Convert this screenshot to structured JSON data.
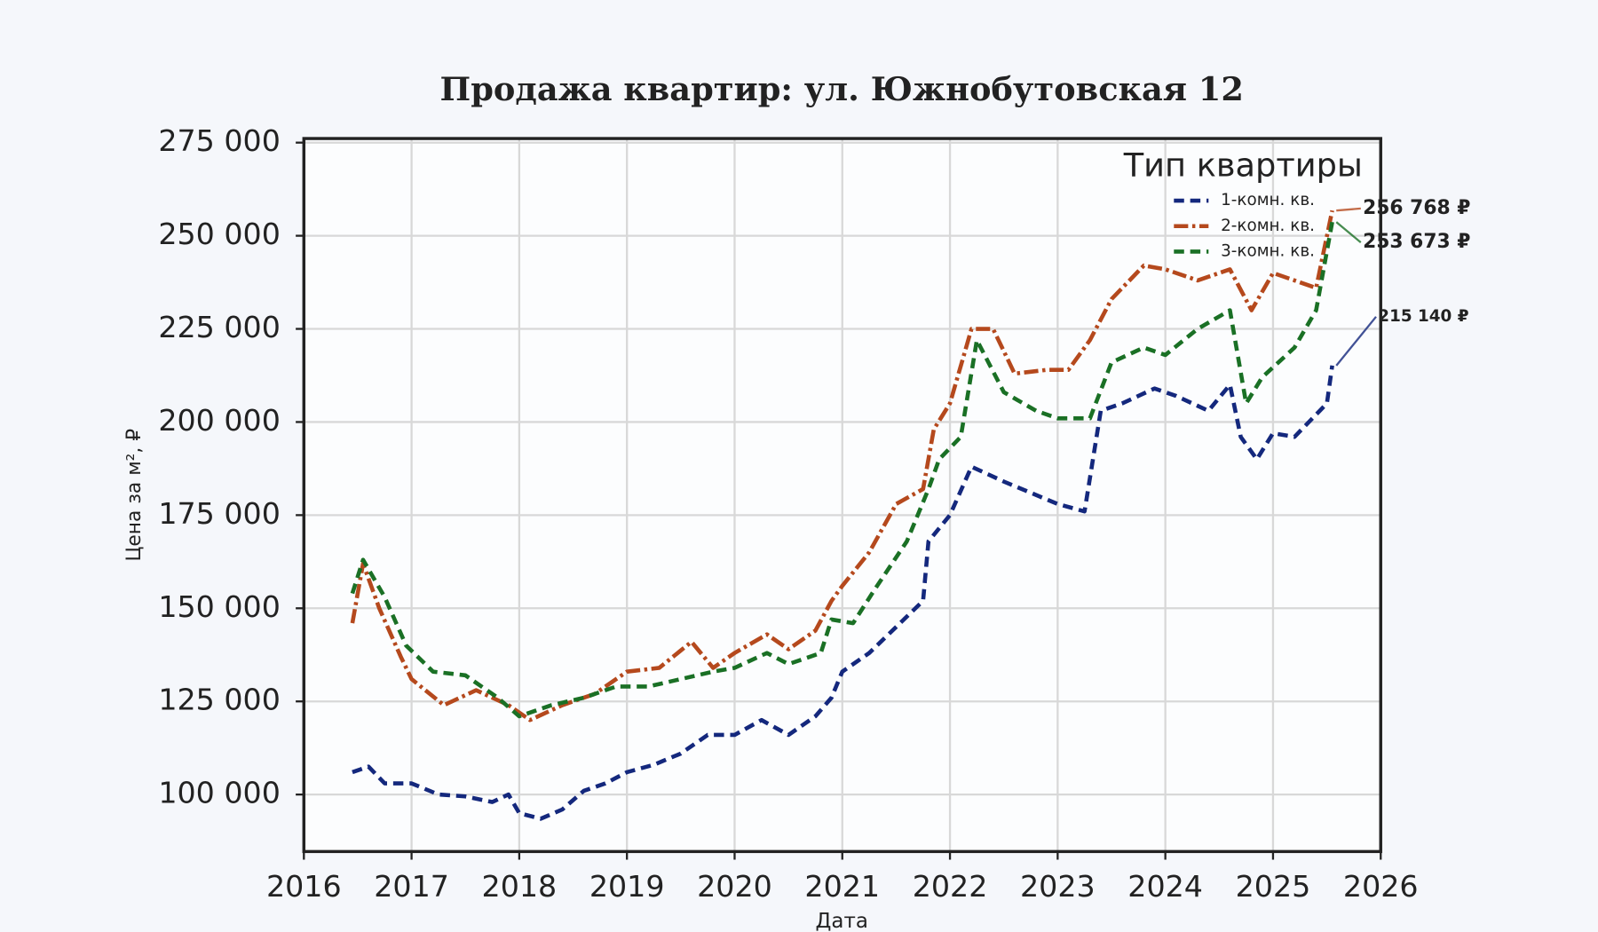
{
  "chart_data": {
    "type": "line",
    "title": "Продажа квартир: ул. Южнобутовская 12",
    "x_label": "Дата",
    "y_label": "Цена за м², ₽",
    "legend_title": "Тип квартиры",
    "legend": "upper right",
    "grid": true,
    "xlim": [
      2016,
      2026
    ],
    "xticks": [
      2016,
      2017,
      2018,
      2019,
      2020,
      2021,
      2022,
      2023,
      2024,
      2025,
      2026
    ],
    "ylim": [
      84700,
      276100
    ],
    "yticks": [
      {
        "value": 100000,
        "label": "100 000"
      },
      {
        "value": 125000,
        "label": "125 000"
      },
      {
        "value": 150000,
        "label": "150 000"
      },
      {
        "value": 175000,
        "label": "175 000"
      },
      {
        "value": 200000,
        "label": "200 000"
      },
      {
        "value": 225000,
        "label": "225 000"
      },
      {
        "value": 250000,
        "label": "250 000"
      },
      {
        "value": 275000,
        "label": "275 000"
      }
    ],
    "series": [
      {
        "name": "1-комн. кв.",
        "color": "#14287d",
        "dash": "10 6",
        "x": [
          2016.45,
          2016.6,
          2016.75,
          2017.0,
          2017.25,
          2017.5,
          2017.75,
          2017.9,
          2018.0,
          2018.2,
          2018.4,
          2018.6,
          2018.8,
          2019.0,
          2019.25,
          2019.5,
          2019.75,
          2020.0,
          2020.25,
          2020.5,
          2020.75,
          2020.9,
          2021.0,
          2021.25,
          2021.5,
          2021.75,
          2021.8,
          2022.0,
          2022.2,
          2022.5,
          2022.75,
          2023.0,
          2023.25,
          2023.4,
          2023.6,
          2023.9,
          2024.1,
          2024.4,
          2024.6,
          2024.7,
          2024.85,
          2025.0,
          2025.2,
          2025.4,
          2025.5,
          2025.55
        ],
        "values": [
          106000,
          107500,
          103000,
          103000,
          100000,
          99500,
          98000,
          100000,
          95000,
          93500,
          96000,
          101000,
          103000,
          106000,
          108000,
          111000,
          116000,
          116000,
          120000,
          116000,
          121000,
          126000,
          133000,
          138000,
          145000,
          152000,
          168000,
          175000,
          188000,
          184000,
          181000,
          178000,
          176000,
          203000,
          205000,
          209000,
          207000,
          203000,
          210000,
          196000,
          190000,
          197000,
          196000,
          202000,
          205000,
          215140
        ],
        "value_labels": [
          null,
          null,
          null,
          null,
          null,
          null,
          null,
          null,
          null,
          null,
          null,
          null,
          null,
          null,
          null,
          null,
          null,
          null,
          null,
          null,
          null,
          null,
          null,
          null,
          null,
          null,
          null,
          null,
          null,
          null,
          null,
          null,
          null,
          null,
          null,
          null,
          null,
          null,
          null,
          null,
          null,
          null,
          null,
          null,
          null,
          "215 140 ₽"
        ]
      },
      {
        "name": "2-комн. кв.",
        "color": "#b5491d",
        "dash": "14 4 3 4",
        "x": [
          2016.45,
          2016.55,
          2016.7,
          2016.9,
          2017.0,
          2017.3,
          2017.6,
          2017.9,
          2018.1,
          2018.4,
          2018.7,
          2019.0,
          2019.3,
          2019.6,
          2019.8,
          2020.0,
          2020.3,
          2020.5,
          2020.75,
          2020.9,
          2021.0,
          2021.25,
          2021.5,
          2021.75,
          2021.85,
          2022.0,
          2022.2,
          2022.4,
          2022.6,
          2022.9,
          2023.1,
          2023.3,
          2023.5,
          2023.8,
          2024.0,
          2024.3,
          2024.6,
          2024.8,
          2025.0,
          2025.2,
          2025.4,
          2025.55
        ],
        "values": [
          146000,
          162000,
          150000,
          137000,
          131000,
          124000,
          128000,
          124000,
          120000,
          124000,
          127000,
          133000,
          134000,
          141000,
          134000,
          138000,
          143000,
          139000,
          144000,
          152000,
          156000,
          165000,
          178000,
          182000,
          198000,
          205000,
          225000,
          225000,
          213000,
          214000,
          214000,
          222000,
          233000,
          242000,
          241000,
          238000,
          241000,
          230000,
          240000,
          238000,
          236000,
          256768
        ],
        "value_labels": [
          null,
          null,
          null,
          null,
          null,
          null,
          null,
          null,
          null,
          null,
          null,
          null,
          null,
          null,
          null,
          null,
          null,
          null,
          null,
          null,
          null,
          null,
          null,
          null,
          null,
          null,
          null,
          null,
          null,
          null,
          null,
          null,
          null,
          null,
          null,
          null,
          null,
          null,
          null,
          null,
          null,
          "256 768 ₽"
        ]
      },
      {
        "name": "3-комн. кв.",
        "color": "#1a7025",
        "dash": "10 6",
        "x": [
          2016.45,
          2016.55,
          2016.75,
          2016.95,
          2017.2,
          2017.5,
          2017.8,
          2018.0,
          2018.3,
          2018.6,
          2018.9,
          2019.2,
          2019.5,
          2019.8,
          2020.0,
          2020.3,
          2020.5,
          2020.8,
          2020.9,
          2021.1,
          2021.3,
          2021.6,
          2021.8,
          2021.9,
          2022.1,
          2022.25,
          2022.5,
          2022.8,
          2023.0,
          2023.3,
          2023.5,
          2023.8,
          2024.0,
          2024.3,
          2024.6,
          2024.75,
          2024.9,
          2025.2,
          2025.4,
          2025.55
        ],
        "values": [
          154000,
          163000,
          153000,
          140000,
          133000,
          132000,
          126000,
          121000,
          124000,
          126000,
          129000,
          129000,
          131000,
          133000,
          134000,
          138000,
          135000,
          138000,
          147000,
          146000,
          155000,
          168000,
          182000,
          190000,
          196000,
          222000,
          208000,
          203000,
          201000,
          201000,
          216000,
          220000,
          218000,
          225000,
          230000,
          205000,
          212000,
          220000,
          230000,
          253673
        ],
        "value_labels": [
          null,
          null,
          null,
          null,
          null,
          null,
          null,
          null,
          null,
          null,
          null,
          null,
          null,
          null,
          null,
          null,
          null,
          null,
          null,
          null,
          null,
          null,
          null,
          null,
          null,
          null,
          null,
          null,
          null,
          null,
          null,
          null,
          null,
          null,
          null,
          null,
          null,
          null,
          null,
          "253 673 ₽"
        ]
      }
    ]
  }
}
